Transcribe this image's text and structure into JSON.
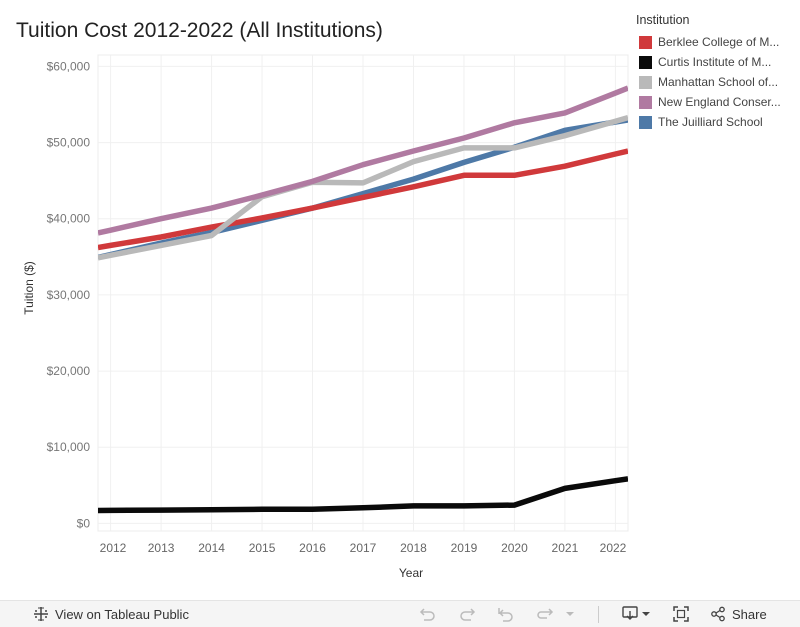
{
  "chart_data": {
    "type": "line",
    "title": "Tuition Cost 2012-2022 (All Institutions)",
    "xlabel": "Year",
    "ylabel": "Tuition ($)",
    "xlim": [
      2011.75,
      2022.25
    ],
    "ylim": [
      -1000,
      61500
    ],
    "x_ticks": [
      "2012",
      "2013",
      "2014",
      "2015",
      "2016",
      "2017",
      "2018",
      "2019",
      "2020",
      "2021",
      "2022"
    ],
    "y_ticks": [
      {
        "value": 0,
        "label": "$0"
      },
      {
        "value": 10000,
        "label": "$10,000"
      },
      {
        "value": 20000,
        "label": "$20,000"
      },
      {
        "value": 30000,
        "label": "$30,000"
      },
      {
        "value": 40000,
        "label": "$40,000"
      },
      {
        "value": 50000,
        "label": "$50,000"
      },
      {
        "value": 60000,
        "label": "$60,000"
      }
    ],
    "legend_title": "Institution",
    "x": [
      2012,
      2013,
      2014,
      2015,
      2016,
      2017,
      2018,
      2019,
      2020,
      2021,
      2022
    ],
    "series": [
      {
        "name": "Berklee College of M...",
        "color": "#d0393b",
        "values": [
          36500,
          37600,
          38900,
          40100,
          41400,
          42800,
          44200,
          45700,
          45700,
          46900,
          48500
        ]
      },
      {
        "name": "Curtis Institute of M...",
        "color": "#0a0a0a",
        "values": [
          1700,
          1750,
          1800,
          1850,
          1850,
          2050,
          2300,
          2300,
          2400,
          4600,
          5600
        ]
      },
      {
        "name": "Manhattan School of...",
        "color": "#b9b9b9",
        "values": [
          35200,
          36500,
          37800,
          42900,
          44800,
          44700,
          47500,
          49300,
          49300,
          50900,
          52800
        ]
      },
      {
        "name": "New England Conser...",
        "color": "#b07aa1",
        "values": [
          38500,
          40000,
          41400,
          43100,
          44900,
          47100,
          48900,
          50600,
          52600,
          53900,
          56500
        ]
      },
      {
        "name": "The Juilliard School",
        "color": "#4e79a7",
        "values": [
          35300,
          36800,
          38200,
          39800,
          41400,
          43300,
          45200,
          47400,
          49400,
          51600,
          52700
        ]
      }
    ]
  },
  "footer": {
    "view_label": "View on Tableau Public",
    "share_label": "Share"
  }
}
